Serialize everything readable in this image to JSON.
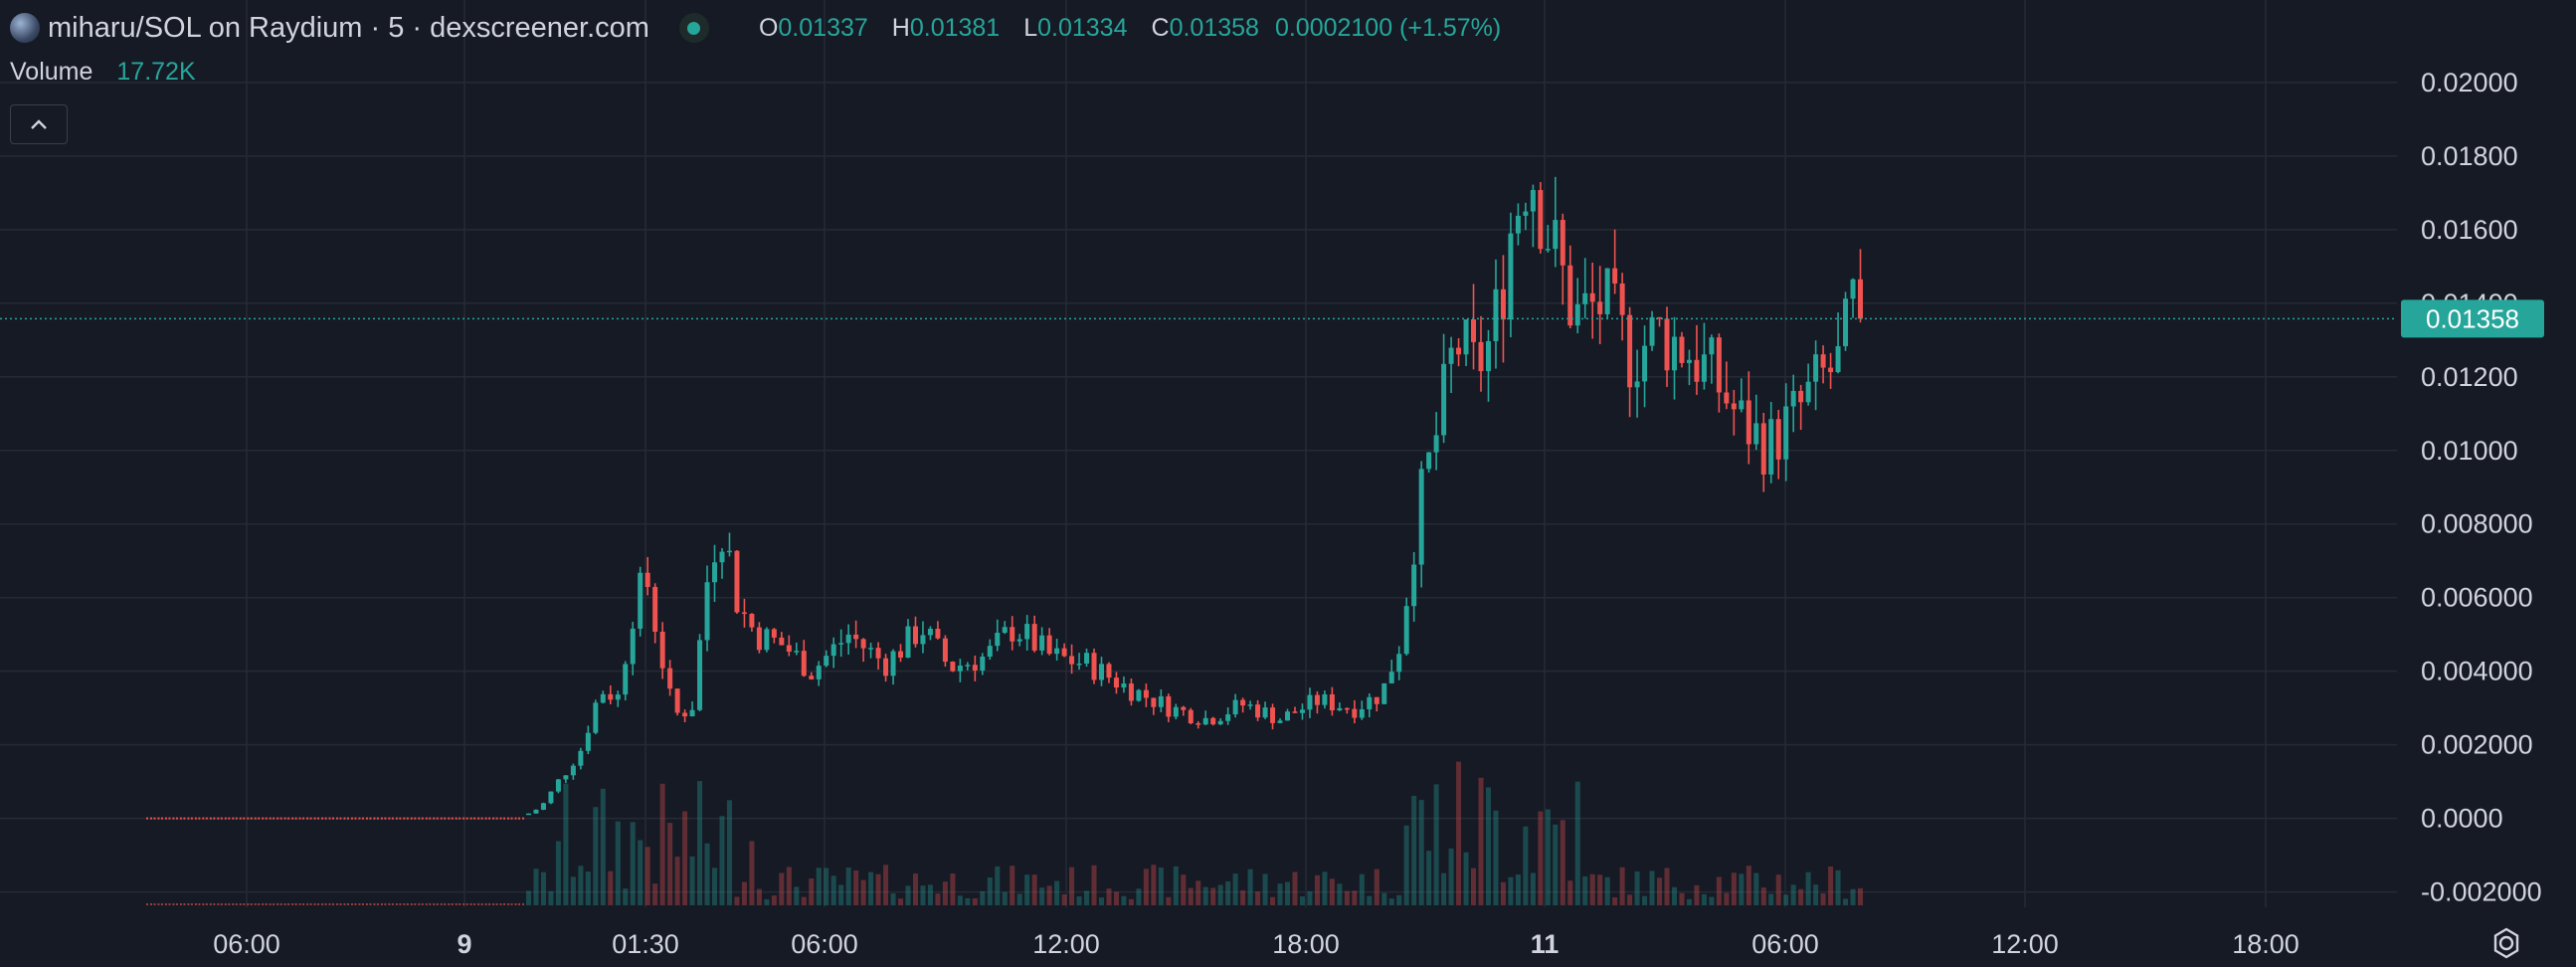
{
  "header": {
    "title": "miharu/SOL on Raydium · 5 · dexscreener.com",
    "ohlc": {
      "o_label": "O",
      "o": "0.01337",
      "h_label": "H",
      "h": "0.01381",
      "l_label": "L",
      "l": "0.01334",
      "c_label": "C",
      "c": "0.01358",
      "change": "0.0002100 (+1.57%)"
    }
  },
  "volume": {
    "label": "Volume",
    "value": "17.72K"
  },
  "icons": {
    "logo": "token-logo-icon",
    "live": "live-dot-icon",
    "collapse": "chevron-up-icon",
    "settings": "settings-icon"
  },
  "colors": {
    "up": "#26a69a",
    "down": "#ef5350",
    "background": "#161a25",
    "grid": "#262a35",
    "axis_text": "#d1d4dc"
  },
  "chart_data": {
    "type": "candlestick",
    "title": "miharu/SOL on Raydium · 5 · dexscreener.com",
    "x_tick_labels": [
      "06:00",
      "9",
      "01:30",
      "06:00",
      "12:00",
      "18:00",
      "11",
      "06:00",
      "12:00",
      "18:00"
    ],
    "bold_x_ticks": [
      "9",
      "11"
    ],
    "y_tick_labels": [
      "0.02000",
      "0.01800",
      "0.01600",
      "0.01400",
      "0.01200",
      "0.01000",
      "0.008000",
      "0.006000",
      "0.004000",
      "0.002000",
      "0.0000",
      "-0.002000"
    ],
    "y_ticks": [
      0.02,
      0.018,
      0.016,
      0.014,
      0.012,
      0.01,
      0.008,
      0.006,
      0.004,
      0.002,
      0.0,
      -0.002
    ],
    "ylim": [
      -0.0022,
      0.0207
    ],
    "current_price": {
      "value": 0.01358,
      "label": "0.01358"
    },
    "price_anchors": [
      [
        0.0,
        0.0
      ],
      [
        0.1,
        0.0
      ],
      [
        0.205,
        0.0001
      ],
      [
        0.215,
        0.0004
      ],
      [
        0.225,
        0.0012
      ],
      [
        0.235,
        0.0019
      ],
      [
        0.245,
        0.0035
      ],
      [
        0.255,
        0.0033
      ],
      [
        0.262,
        0.0055
      ],
      [
        0.27,
        0.0066
      ],
      [
        0.278,
        0.0045
      ],
      [
        0.285,
        0.0028
      ],
      [
        0.295,
        0.003
      ],
      [
        0.305,
        0.0072
      ],
      [
        0.312,
        0.008
      ],
      [
        0.32,
        0.0058
      ],
      [
        0.33,
        0.005
      ],
      [
        0.345,
        0.0047
      ],
      [
        0.36,
        0.004
      ],
      [
        0.38,
        0.005
      ],
      [
        0.4,
        0.0042
      ],
      [
        0.42,
        0.0052
      ],
      [
        0.435,
        0.0041
      ],
      [
        0.455,
        0.0044
      ],
      [
        0.47,
        0.0052
      ],
      [
        0.49,
        0.0044
      ],
      [
        0.51,
        0.0042
      ],
      [
        0.53,
        0.0036
      ],
      [
        0.555,
        0.003
      ],
      [
        0.575,
        0.0027
      ],
      [
        0.595,
        0.0031
      ],
      [
        0.615,
        0.0027
      ],
      [
        0.635,
        0.0032
      ],
      [
        0.655,
        0.003
      ],
      [
        0.67,
        0.0034
      ],
      [
        0.68,
        0.0048
      ],
      [
        0.69,
        0.0085
      ],
      [
        0.7,
        0.0105
      ],
      [
        0.71,
        0.013
      ],
      [
        0.72,
        0.0122
      ],
      [
        0.73,
        0.013
      ],
      [
        0.74,
        0.016
      ],
      [
        0.75,
        0.018
      ],
      [
        0.76,
        0.016
      ],
      [
        0.775,
        0.0136
      ],
      [
        0.79,
        0.014
      ],
      [
        0.805,
        0.0126
      ],
      [
        0.82,
        0.0132
      ],
      [
        0.835,
        0.0128
      ],
      [
        0.85,
        0.012
      ],
      [
        0.865,
        0.0108
      ],
      [
        0.88,
        0.0101
      ],
      [
        0.895,
        0.011
      ],
      [
        0.91,
        0.012
      ],
      [
        0.92,
        0.0124
      ],
      [
        0.925,
        0.014
      ],
      [
        0.93,
        0.01358
      ]
    ],
    "candle_count": 230,
    "flat_start_fraction": 0.1,
    "flat_end_fraction": 0.205
  }
}
